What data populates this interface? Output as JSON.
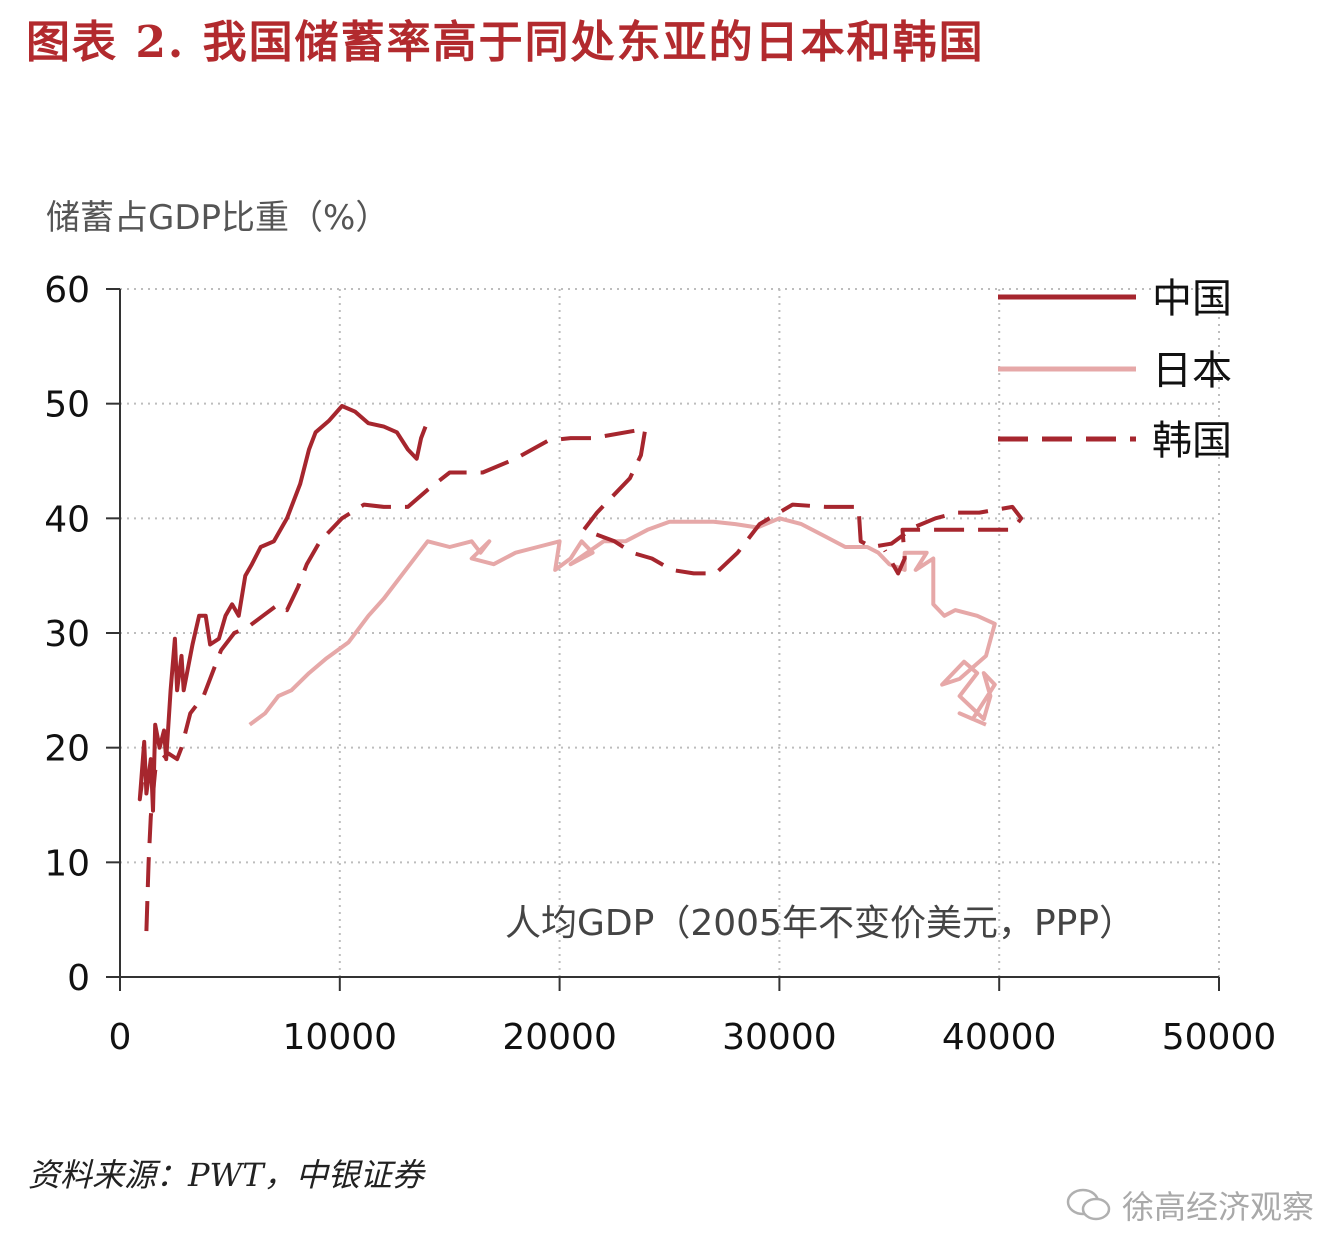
{
  "figure_title": "图表 2. 我国储蓄率高于同处东亚的日本和韩国",
  "source": "资料来源：PWT，中银证券",
  "watermark": "徐高经济观察",
  "chart_data": {
    "type": "line",
    "title": "",
    "ylabel": "储蓄占GDP比重（%）",
    "xlabel": "人均GDP（2005年不变价美元，PPP）",
    "xlim": [
      0,
      50000
    ],
    "ylim": [
      0,
      60
    ],
    "xticks": [
      0,
      10000,
      20000,
      30000,
      40000,
      50000
    ],
    "yticks": [
      0,
      10,
      20,
      30,
      40,
      50,
      60
    ],
    "grid": true,
    "legend_position": "top-right",
    "series": [
      {
        "name": "中国",
        "color": "#a6262e",
        "style": "solid",
        "points": [
          [
            1000,
            17
          ],
          [
            900,
            15.5
          ],
          [
            1100,
            20.5
          ],
          [
            1200,
            16
          ],
          [
            1400,
            19
          ],
          [
            1500,
            14.5
          ],
          [
            1600,
            22
          ],
          [
            1800,
            20
          ],
          [
            2000,
            21.5
          ],
          [
            2100,
            19
          ],
          [
            2300,
            25
          ],
          [
            2500,
            29.5
          ],
          [
            2600,
            25
          ],
          [
            2800,
            28
          ],
          [
            2900,
            25
          ],
          [
            3100,
            27
          ],
          [
            3300,
            29
          ],
          [
            3600,
            31.5
          ],
          [
            3900,
            31.5
          ],
          [
            4100,
            29
          ],
          [
            4500,
            29.5
          ],
          [
            4800,
            31.5
          ],
          [
            5100,
            32.5
          ],
          [
            5400,
            31.5
          ],
          [
            5700,
            35
          ],
          [
            6000,
            36
          ],
          [
            6400,
            37.5
          ],
          [
            7000,
            38
          ],
          [
            7600,
            40
          ],
          [
            8200,
            43
          ],
          [
            8600,
            46
          ],
          [
            8900,
            47.5
          ],
          [
            9500,
            48.5
          ],
          [
            10100,
            49.8
          ],
          [
            10700,
            49.3
          ],
          [
            11300,
            48.3
          ],
          [
            12000,
            48
          ],
          [
            12600,
            47.5
          ],
          [
            13100,
            46
          ],
          [
            13500,
            45.2
          ],
          [
            13700,
            47
          ],
          [
            13900,
            48
          ]
        ]
      },
      {
        "name": "日本",
        "color": "#e6a8a8",
        "style": "solid",
        "points": [
          [
            5900,
            22
          ],
          [
            6600,
            23
          ],
          [
            7200,
            24.5
          ],
          [
            7800,
            25
          ],
          [
            8600,
            26.5
          ],
          [
            9400,
            27.8
          ],
          [
            10400,
            29.2
          ],
          [
            11300,
            31.5
          ],
          [
            12000,
            33
          ],
          [
            12800,
            35
          ],
          [
            13600,
            37
          ],
          [
            14000,
            38
          ],
          [
            15000,
            37.5
          ],
          [
            16000,
            38
          ],
          [
            16400,
            37
          ],
          [
            16800,
            38
          ],
          [
            16000,
            36.5
          ],
          [
            17000,
            36
          ],
          [
            18000,
            37
          ],
          [
            19000,
            37.5
          ],
          [
            20000,
            38
          ],
          [
            19800,
            35.5
          ],
          [
            20500,
            36.5
          ],
          [
            21000,
            38
          ],
          [
            21500,
            37
          ],
          [
            20500,
            36
          ],
          [
            22000,
            38
          ],
          [
            23000,
            38
          ],
          [
            24000,
            39
          ],
          [
            25000,
            39.7
          ],
          [
            26000,
            39.7
          ],
          [
            27000,
            39.7
          ],
          [
            28000,
            39.5
          ],
          [
            29000,
            39.2
          ],
          [
            30000,
            40
          ],
          [
            31000,
            39.5
          ],
          [
            32000,
            38.5
          ],
          [
            33000,
            37.5
          ],
          [
            34000,
            37.5
          ],
          [
            34500,
            37
          ],
          [
            35000,
            36
          ],
          [
            35700,
            35.5
          ],
          [
            35700,
            37
          ],
          [
            36700,
            37
          ],
          [
            36200,
            35.5
          ],
          [
            37000,
            36.5
          ],
          [
            37000,
            32.5
          ],
          [
            37500,
            31.5
          ],
          [
            38000,
            32
          ],
          [
            39000,
            31.5
          ],
          [
            39800,
            30.8
          ],
          [
            39400,
            28
          ],
          [
            38200,
            26
          ],
          [
            37400,
            25.5
          ],
          [
            38400,
            27.5
          ],
          [
            39000,
            26.5
          ],
          [
            38200,
            24.5
          ],
          [
            39300,
            22.5
          ],
          [
            39600,
            24.5
          ],
          [
            39300,
            26.5
          ],
          [
            39800,
            25.5
          ],
          [
            38800,
            22.5
          ],
          [
            38200,
            23
          ],
          [
            39400,
            22
          ]
        ]
      },
      {
        "name": "韩国",
        "color": "#a6262e",
        "style": "dashed",
        "points": [
          [
            1200,
            4
          ],
          [
            1300,
            10
          ],
          [
            1400,
            14
          ],
          [
            1500,
            16
          ],
          [
            1600,
            18
          ],
          [
            1900,
            19
          ],
          [
            2200,
            19.5
          ],
          [
            2600,
            19
          ],
          [
            2800,
            20
          ],
          [
            3200,
            23
          ],
          [
            3800,
            24.5
          ],
          [
            4200,
            26.5
          ],
          [
            4600,
            28.5
          ],
          [
            5200,
            30
          ],
          [
            5800,
            30.5
          ],
          [
            6500,
            31.5
          ],
          [
            7200,
            32.5
          ],
          [
            7600,
            32
          ],
          [
            8100,
            34
          ],
          [
            8500,
            36
          ],
          [
            9100,
            38
          ],
          [
            10100,
            40
          ],
          [
            11100,
            41.2
          ],
          [
            12000,
            41
          ],
          [
            13100,
            41
          ],
          [
            14000,
            42.5
          ],
          [
            15000,
            44
          ],
          [
            16500,
            44
          ],
          [
            18000,
            45.2
          ],
          [
            19500,
            46.8
          ],
          [
            20500,
            47
          ],
          [
            21500,
            47
          ],
          [
            23900,
            47.8
          ],
          [
            23700,
            45.5
          ],
          [
            23200,
            43.5
          ],
          [
            21700,
            40.5
          ],
          [
            21100,
            39
          ],
          [
            22500,
            38
          ],
          [
            23300,
            37
          ],
          [
            24200,
            36.5
          ],
          [
            25100,
            35.5
          ],
          [
            26100,
            35.2
          ],
          [
            27100,
            35.2
          ],
          [
            28100,
            37
          ],
          [
            29100,
            39.5
          ],
          [
            30600,
            41.2
          ],
          [
            32100,
            41
          ],
          [
            33600,
            41
          ],
          [
            33700,
            38
          ],
          [
            34200,
            37.5
          ],
          [
            35100,
            37.8
          ],
          [
            36100,
            39.2
          ],
          [
            37100,
            40
          ],
          [
            38100,
            40.5
          ],
          [
            39100,
            40.5
          ],
          [
            40600,
            41
          ],
          [
            41000,
            40
          ],
          [
            40600,
            39
          ],
          [
            35600,
            39
          ],
          [
            35700,
            36.5
          ],
          [
            35400,
            35.2
          ],
          [
            34800,
            37.2
          ]
        ]
      }
    ]
  }
}
